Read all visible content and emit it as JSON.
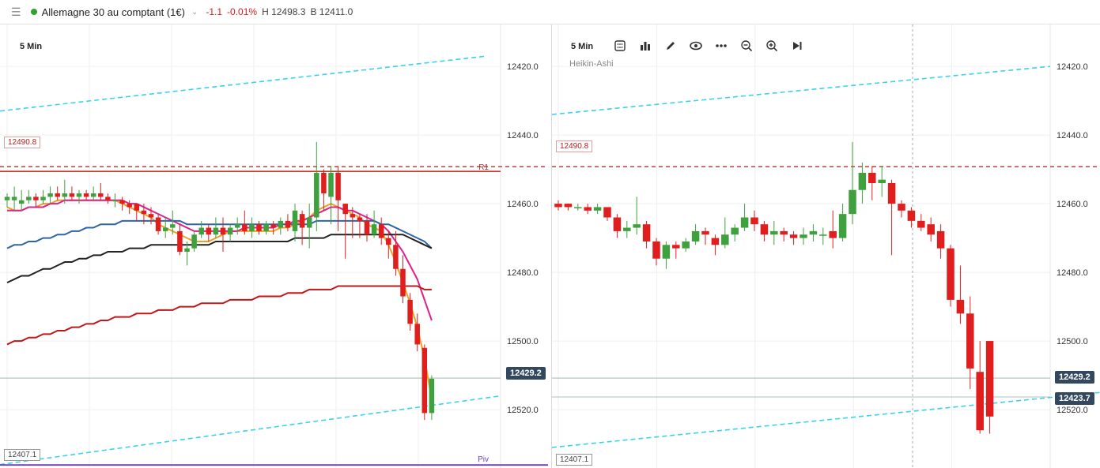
{
  "header": {
    "menu_glyph": "☰",
    "instrument": "Allemagne 30 au comptant (1€)",
    "status_color": "#2aa52a",
    "chevron_glyph": "⌄",
    "change": "-1.1",
    "change_pct": "-0.01%",
    "high": "H 12498.3",
    "bid": "B 12411.0"
  },
  "left_chart": {
    "timeframe": "5 Min",
    "y_ticks": [
      "12520.0",
      "12500.0",
      "12480.0",
      "12460.0",
      "12440.0",
      "12420.0"
    ],
    "price_badge": "12429.2",
    "r1_box": "12490.8",
    "r1_label": "R1",
    "pivot_box": "12407.1",
    "pivot_label": "Piv"
  },
  "right_chart": {
    "timeframe": "5 Min",
    "chart_type": "Heikin-Ashi",
    "y_ticks": [
      "12520.0",
      "12500.0",
      "12480.0",
      "12460.0",
      "12440.0",
      "12420.0"
    ],
    "price_badge_1": "12429.2",
    "price_badge_2": "12423.7",
    "r1_box": "12490.8",
    "pivot_box": "12407.1",
    "toolbar": [
      "calculator-icon",
      "bar-chart-icon",
      "pencil-icon",
      "eye-icon",
      "more-icon",
      "zoom-out-icon",
      "zoom-in-icon",
      "skip-end-icon"
    ]
  },
  "colors": {
    "up": "#3ea13e",
    "down": "#e01e1e",
    "trend": "#3ad3ea",
    "r1": "#c0392b",
    "pivot": "#6a3fb5",
    "badge": "#33485e"
  },
  "chart_data": [
    {
      "type": "candlestick",
      "title": "Allemagne 30 au comptant (1€)",
      "timeframe": "5 Min",
      "ylim": [
        12403,
        12529
      ],
      "y_ticks": [
        12420,
        12440,
        12460,
        12480,
        12500,
        12520
      ],
      "candles": [
        [
          12481,
          12482,
          12483,
          12479
        ],
        [
          12481,
          12482,
          12485,
          12478
        ],
        [
          12480,
          12481,
          12484,
          12478
        ],
        [
          12481,
          12482,
          12484,
          12480
        ],
        [
          12482,
          12481,
          12483,
          12479
        ],
        [
          12481,
          12482,
          12484,
          12480
        ],
        [
          12482,
          12483,
          12485,
          12480
        ],
        [
          12483,
          12482,
          12485,
          12481
        ],
        [
          12482,
          12483,
          12487,
          12480
        ],
        [
          12483,
          12482,
          12485,
          12481
        ],
        [
          12482,
          12483,
          12484,
          12480
        ],
        [
          12483,
          12482,
          12484,
          12481
        ],
        [
          12482,
          12483,
          12485,
          12481
        ],
        [
          12483,
          12482,
          12486,
          12481
        ],
        [
          12482,
          12481,
          12483,
          12480
        ],
        [
          12481,
          12481,
          12483,
          12479
        ],
        [
          12481,
          12480,
          12482,
          12478
        ],
        [
          12480,
          12479,
          12481,
          12477
        ],
        [
          12480,
          12478,
          12480,
          12475
        ],
        [
          12478,
          12477,
          12480,
          12474
        ],
        [
          12477,
          12476,
          12479,
          12474
        ],
        [
          12476,
          12472,
          12477,
          12471
        ],
        [
          12472,
          12473,
          12476,
          12470
        ],
        [
          12473,
          12474,
          12478,
          12471
        ],
        [
          12472,
          12466,
          12474,
          12465
        ],
        [
          12466,
          12467,
          12469,
          12462
        ],
        [
          12467,
          12471,
          12472,
          12466
        ],
        [
          12471,
          12473,
          12475,
          12470
        ],
        [
          12473,
          12471,
          12474,
          12469
        ],
        [
          12471,
          12473,
          12476,
          12470
        ],
        [
          12473,
          12471,
          12476,
          12466
        ],
        [
          12471,
          12473,
          12474,
          12469
        ],
        [
          12473,
          12474,
          12476,
          12471
        ],
        [
          12474,
          12472,
          12478,
          12471
        ],
        [
          12472,
          12474,
          12476,
          12470
        ],
        [
          12474,
          12472,
          12475,
          12471
        ],
        [
          12472,
          12474,
          12475,
          12471
        ],
        [
          12474,
          12473,
          12475,
          12471
        ],
        [
          12473,
          12475,
          12476,
          12471
        ],
        [
          12475,
          12473,
          12477,
          12472
        ],
        [
          12472,
          12478,
          12480,
          12469
        ],
        [
          12477,
          12473,
          12478,
          12468
        ],
        [
          12473,
          12476,
          12480,
          12467
        ],
        [
          12476,
          12489,
          12498,
          12472
        ],
        [
          12489,
          12483,
          12490,
          12478
        ],
        [
          12482,
          12489,
          12491,
          12474
        ],
        [
          12489,
          12481,
          12491,
          12472
        ],
        [
          12480,
          12477,
          12480,
          12464
        ],
        [
          12477,
          12476,
          12479,
          12470
        ],
        [
          12476,
          12475,
          12477,
          12470
        ],
        [
          12475,
          12471,
          12477,
          12469
        ],
        [
          12471,
          12474,
          12478,
          12470
        ],
        [
          12474,
          12470,
          12476,
          12468
        ],
        [
          12470,
          12468,
          12472,
          12464
        ],
        [
          12468,
          12461,
          12472,
          12459
        ],
        [
          12461,
          12453,
          12465,
          12451
        ],
        [
          12452,
          12445,
          12454,
          12443
        ],
        [
          12445,
          12439,
          12448,
          12437
        ],
        [
          12438,
          12419,
          12439,
          12417
        ],
        [
          12419,
          12429,
          12430,
          12417
        ]
      ],
      "overlays": [
        {
          "name": "MA-orange",
          "color": "#f0a020",
          "values": [
            12479,
            12478,
            12478,
            12479,
            12479,
            12480,
            12480,
            12481,
            12481,
            12481,
            12481,
            12481,
            12481,
            12481,
            12481,
            12481,
            12480,
            12479,
            12478,
            12477,
            12476,
            12474,
            12473,
            12472,
            12471,
            12470,
            12469,
            12469,
            12469,
            12470,
            12471,
            12472,
            12472,
            12472,
            12472,
            12472,
            12472,
            12472,
            12473,
            12473,
            12474,
            12475,
            12476,
            12478,
            12479,
            12480,
            12479,
            12478,
            12477,
            12476,
            12474,
            12473,
            12472,
            12468,
            12463,
            12457,
            12451,
            12444,
            12435,
            12423
          ]
        },
        {
          "name": "MA-magenta",
          "color": "#e0208c",
          "values": [
            12478,
            12478,
            12478,
            12479,
            12479,
            12479,
            12480,
            12480,
            12481,
            12481,
            12481,
            12481,
            12481,
            12481,
            12481,
            12481,
            12481,
            12480,
            12480,
            12479,
            12478,
            12477,
            12476,
            12475,
            12474,
            12473,
            12472,
            12472,
            12472,
            12472,
            12472,
            12472,
            12472,
            12473,
            12473,
            12473,
            12473,
            12473,
            12474,
            12474,
            12475,
            12475,
            12476,
            12477,
            12478,
            12479,
            12479,
            12478,
            12478,
            12477,
            12476,
            12475,
            12474,
            12472,
            12469,
            12466,
            12462,
            12458,
            12452,
            12446
          ]
        },
        {
          "name": "MA-blue",
          "color": "#2e64a8",
          "values": [
            12467,
            12468,
            12468,
            12469,
            12469,
            12470,
            12470,
            12471,
            12471,
            12472,
            12472,
            12473,
            12473,
            12474,
            12474,
            12474,
            12475,
            12475,
            12475,
            12475,
            12475,
            12475,
            12475,
            12475,
            12475,
            12474,
            12474,
            12474,
            12474,
            12474,
            12474,
            12474,
            12474,
            12474,
            12474,
            12474,
            12474,
            12474,
            12474,
            12474,
            12474,
            12474,
            12474,
            12475,
            12475,
            12475,
            12475,
            12475,
            12475,
            12475,
            12475,
            12475,
            12474,
            12474,
            12473,
            12472,
            12471,
            12470,
            12469,
            12467
          ]
        },
        {
          "name": "MA-black",
          "color": "#222222",
          "values": [
            12457,
            12458,
            12459,
            12459,
            12460,
            12461,
            12461,
            12462,
            12463,
            12463,
            12464,
            12464,
            12465,
            12465,
            12466,
            12466,
            12466,
            12467,
            12467,
            12467,
            12468,
            12468,
            12468,
            12468,
            12468,
            12468,
            12468,
            12468,
            12468,
            12469,
            12469,
            12469,
            12469,
            12469,
            12469,
            12469,
            12469,
            12469,
            12469,
            12469,
            12470,
            12470,
            12470,
            12470,
            12470,
            12471,
            12471,
            12471,
            12471,
            12471,
            12471,
            12471,
            12471,
            12471,
            12471,
            12471,
            12470,
            12469,
            12468,
            12467
          ]
        },
        {
          "name": "MA-red",
          "color": "#c01818",
          "values": [
            12439,
            12440,
            12440,
            12441,
            12441,
            12442,
            12442,
            12443,
            12443,
            12444,
            12444,
            12445,
            12445,
            12446,
            12446,
            12447,
            12447,
            12447,
            12448,
            12448,
            12448,
            12449,
            12449,
            12449,
            12450,
            12450,
            12450,
            12451,
            12451,
            12451,
            12451,
            12452,
            12452,
            12452,
            12452,
            12453,
            12453,
            12453,
            12453,
            12454,
            12454,
            12454,
            12455,
            12455,
            12455,
            12455,
            12456,
            12456,
            12456,
            12456,
            12456,
            12456,
            12456,
            12456,
            12456,
            12456,
            12456,
            12456,
            12455,
            12455
          ]
        }
      ],
      "levels": [
        {
          "label": "R1",
          "value": 12490.8
        },
        {
          "label": "Piv",
          "value": 12407.1
        }
      ],
      "current_price": 12429.2
    },
    {
      "type": "candlestick",
      "subtype": "Heikin-Ashi",
      "timeframe": "5 Min",
      "ylim": [
        12403,
        12529
      ],
      "y_ticks": [
        12420,
        12440,
        12460,
        12480,
        12500,
        12520
      ],
      "candles": [
        [
          12480,
          12479,
          12481,
          12478
        ],
        [
          12480,
          12479,
          12480,
          12478
        ],
        [
          12479,
          12479,
          12480,
          12478
        ],
        [
          12479,
          12478,
          12480,
          12477
        ],
        [
          12478,
          12479,
          12480,
          12477
        ],
        [
          12479,
          12476,
          12479,
          12475
        ],
        [
          12476,
          12472,
          12477,
          12470
        ],
        [
          12472,
          12473,
          12475,
          12470
        ],
        [
          12473,
          12474,
          12482,
          12471
        ],
        [
          12474,
          12469,
          12475,
          12467
        ],
        [
          12469,
          12464,
          12470,
          12462
        ],
        [
          12464,
          12468,
          12469,
          12461
        ],
        [
          12468,
          12467,
          12469,
          12464
        ],
        [
          12467,
          12469,
          12470,
          12466
        ],
        [
          12469,
          12472,
          12474,
          12468
        ],
        [
          12472,
          12471,
          12473,
          12468
        ],
        [
          12470,
          12468,
          12471,
          12465
        ],
        [
          12468,
          12471,
          12476,
          12467
        ],
        [
          12471,
          12473,
          12474,
          12469
        ],
        [
          12473,
          12476,
          12480,
          12472
        ],
        [
          12476,
          12474,
          12478,
          12472
        ],
        [
          12474,
          12471,
          12475,
          12469
        ],
        [
          12471,
          12472,
          12475,
          12468
        ],
        [
          12472,
          12471,
          12473,
          12469
        ],
        [
          12471,
          12470,
          12472,
          12468
        ],
        [
          12470,
          12471,
          12473,
          12468
        ],
        [
          12471,
          12472,
          12474,
          12469
        ],
        [
          12471,
          12471,
          12473,
          12468
        ],
        [
          12472,
          12470,
          12478,
          12467
        ],
        [
          12470,
          12477,
          12480,
          12469
        ],
        [
          12477,
          12484,
          12498,
          12474
        ],
        [
          12484,
          12489,
          12492,
          12480
        ],
        [
          12489,
          12486,
          12491,
          12481
        ],
        [
          12486,
          12487,
          12491,
          12482
        ],
        [
          12486,
          12480,
          12487,
          12465
        ],
        [
          12480,
          12478,
          12481,
          12476
        ],
        [
          12478,
          12475,
          12479,
          12473
        ],
        [
          12475,
          12473,
          12477,
          12472
        ],
        [
          12474,
          12471,
          12476,
          12469
        ],
        [
          12472,
          12467,
          12474,
          12464
        ],
        [
          12467,
          12452,
          12468,
          12450
        ],
        [
          12452,
          12448,
          12462,
          12445
        ],
        [
          12448,
          12432,
          12453,
          12426
        ],
        [
          12431,
          12414,
          12440,
          12413
        ],
        [
          12440,
          12418,
          12440,
          12413
        ]
      ],
      "levels": [
        {
          "label": "R1",
          "value": 12490.8
        },
        {
          "label": "Piv",
          "value": 12407.1
        }
      ],
      "current_price": 12429.2,
      "secondary_price": 12423.7
    }
  ]
}
